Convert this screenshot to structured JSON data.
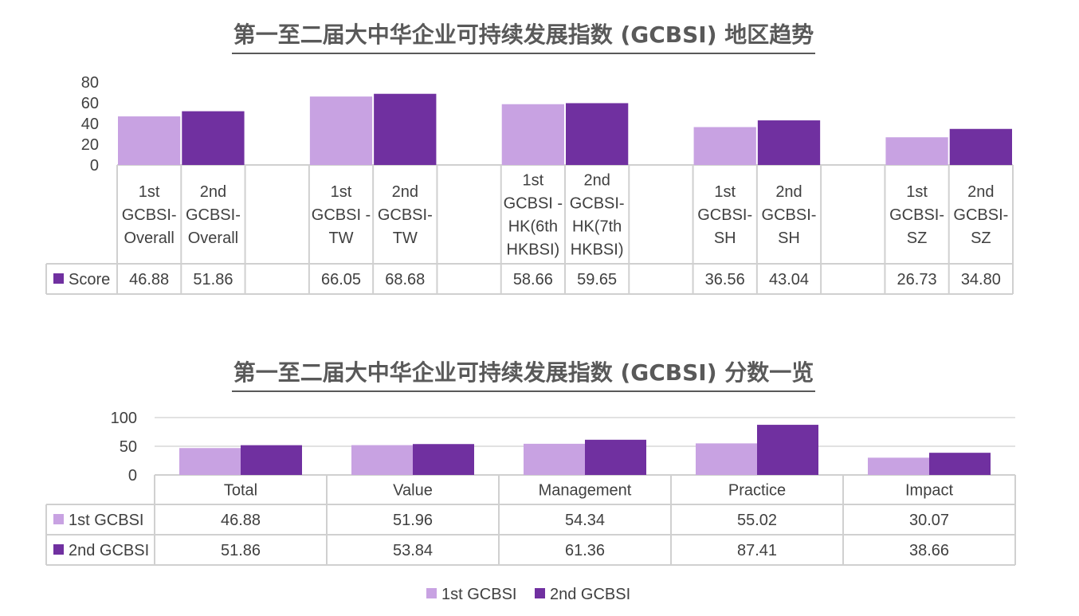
{
  "colors": {
    "first": "#c8a2e2",
    "second": "#7030a0",
    "text": "#404040",
    "grid": "#d9d9d9"
  },
  "chart_data": [
    {
      "type": "bar",
      "title": "第一至二届大中华企业可持续发展指数 (GCBSI) 地区趋势",
      "xlabel": "",
      "ylabel": "",
      "ylim": [
        0,
        80
      ],
      "yticks": [
        "0",
        "20",
        "40",
        "60",
        "80"
      ],
      "grid": false,
      "categories": [
        "1st GCBSI-Overall",
        "2nd GCBSI-Overall",
        "1st GCBSI - TW",
        "2nd GCBSI-TW",
        "1st GCBSI - HK(6th HKBSI)",
        "2nd GCBSI-HK(7th HKBSI)",
        "1st GCBSI-SH",
        "2nd GCBSI-SH",
        "1st GCBSI-SZ",
        "2nd GCBSI-SZ"
      ],
      "category_lines": [
        [
          "1st",
          "GCBSI-",
          "Overall"
        ],
        [
          "2nd",
          "GCBSI-",
          "Overall"
        ],
        [
          "1st",
          "GCBSI -",
          "TW"
        ],
        [
          "2nd",
          "GCBSI-",
          "TW"
        ],
        [
          "1st",
          "GCBSI -",
          "HK(6th",
          "HKBSI)"
        ],
        [
          "2nd",
          "GCBSI-",
          "HK(7th",
          "HKBSI)"
        ],
        [
          "1st",
          "GCBSI-",
          "SH"
        ],
        [
          "2nd",
          "GCBSI-",
          "SH"
        ],
        [
          "1st",
          "GCBSI-",
          "SZ"
        ],
        [
          "2nd",
          "GCBSI-",
          "SZ"
        ]
      ],
      "series": [
        {
          "name": "Score",
          "values": [
            46.88,
            51.86,
            66.05,
            68.68,
            58.66,
            59.65,
            36.56,
            43.04,
            26.73,
            34.8
          ],
          "labels": [
            "46.88",
            "51.86",
            "66.05",
            "68.68",
            "58.66",
            "59.65",
            "36.56",
            "43.04",
            "26.73",
            "34.80"
          ]
        }
      ],
      "legend": "data-table"
    },
    {
      "type": "bar",
      "title": "第一至二届大中华企业可持续发展指数 (GCBSI) 分数一览",
      "xlabel": "",
      "ylabel": "",
      "ylim": [
        0,
        100
      ],
      "yticks": [
        "0",
        "50",
        "100"
      ],
      "grid": true,
      "categories": [
        "Total",
        "Value",
        "Management",
        "Practice",
        "Impact"
      ],
      "series": [
        {
          "name": "1st GCBSI",
          "values": [
            46.88,
            51.96,
            54.34,
            55.02,
            30.07
          ],
          "labels": [
            "46.88",
            "51.96",
            "54.34",
            "55.02",
            "30.07"
          ]
        },
        {
          "name": "2nd GCBSI",
          "values": [
            51.86,
            53.84,
            61.36,
            87.41,
            38.66
          ],
          "labels": [
            "51.86",
            "53.84",
            "61.36",
            "87.41",
            "38.66"
          ]
        }
      ],
      "legend": "bottom-center"
    }
  ]
}
